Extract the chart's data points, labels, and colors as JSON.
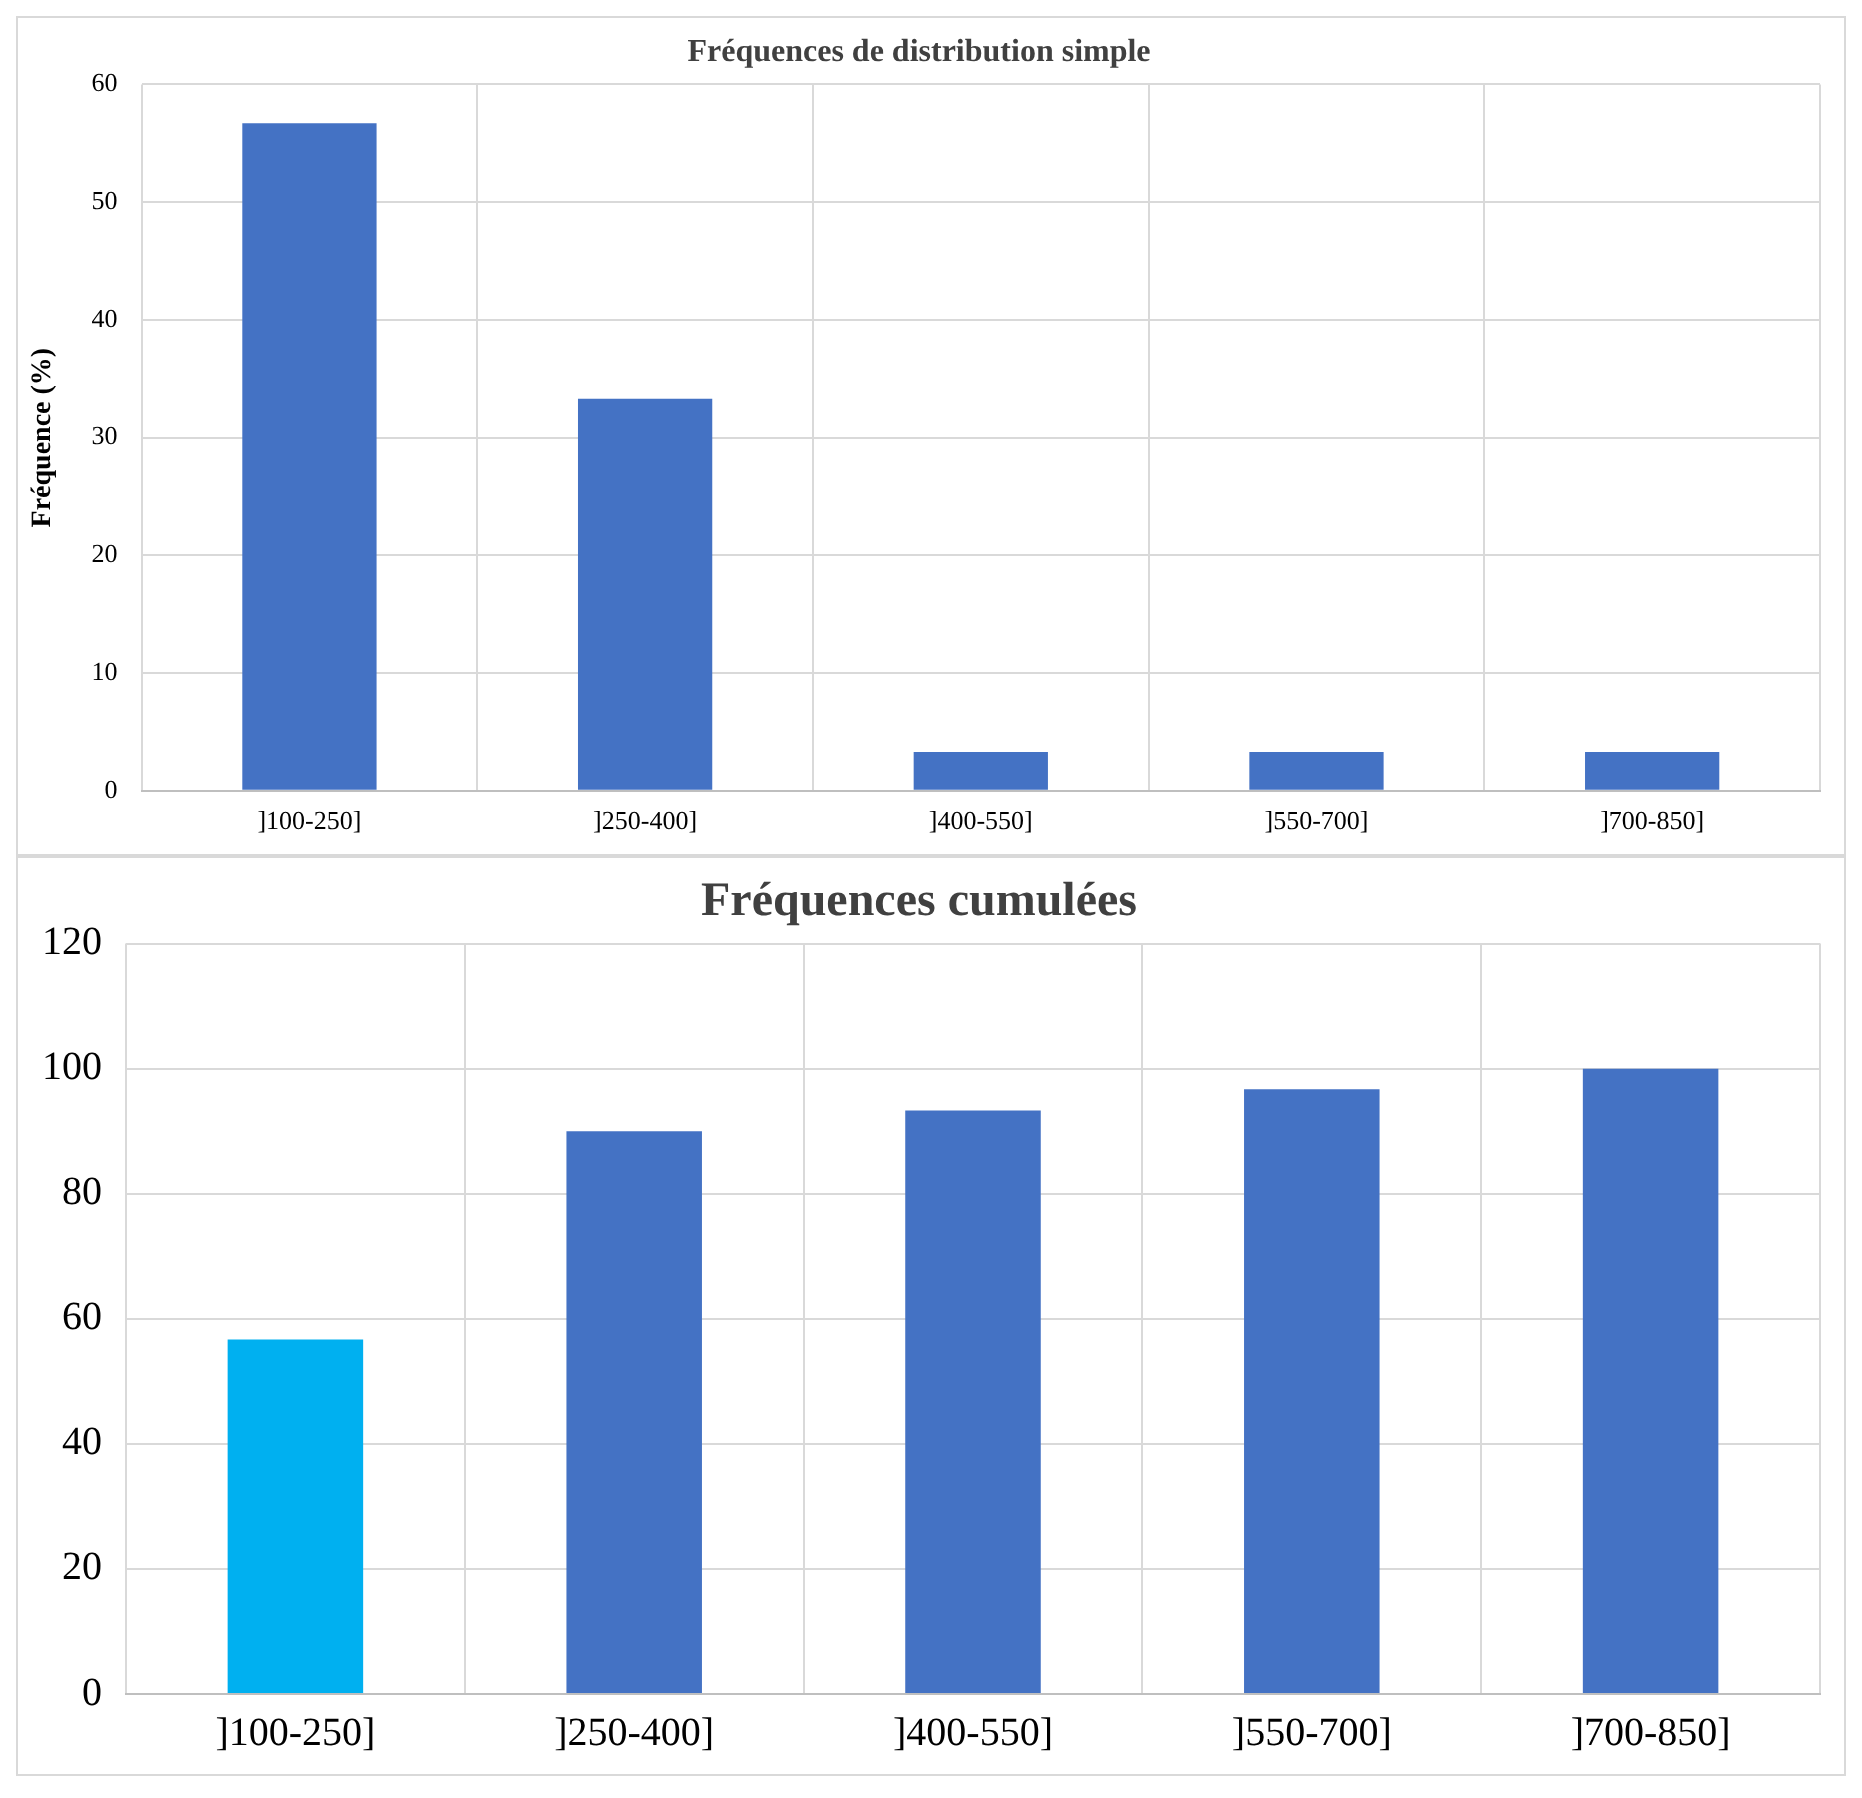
{
  "chart_data": [
    {
      "type": "bar",
      "title": "Fréquences de distribution simple",
      "ylabel": "Fréquence (%)",
      "categories": [
        "]100-250]",
        "]250-400]",
        "]400-550]",
        "]550-700]",
        "]700-850]"
      ],
      "values": [
        56.7,
        33.3,
        3.3,
        3.3,
        3.3
      ],
      "color": "#4472c4",
      "ylim": [
        0,
        60
      ],
      "yticks": [
        0,
        10,
        20,
        30,
        40,
        50,
        60
      ],
      "grid": true
    },
    {
      "type": "bar",
      "title": "Fréquences cumulées",
      "categories": [
        "]100-250]",
        "]250-400]",
        "]400-550]",
        "]550-700]",
        "]700-850]"
      ],
      "values": [
        56.7,
        90,
        93.3,
        96.7,
        100
      ],
      "colors": [
        "#00b0f0",
        "#4472c4",
        "#4472c4",
        "#4472c4",
        "#4472c4"
      ],
      "ylim": [
        0,
        120
      ],
      "yticks": [
        0,
        20,
        40,
        60,
        80,
        100,
        120
      ],
      "grid": true
    }
  ]
}
